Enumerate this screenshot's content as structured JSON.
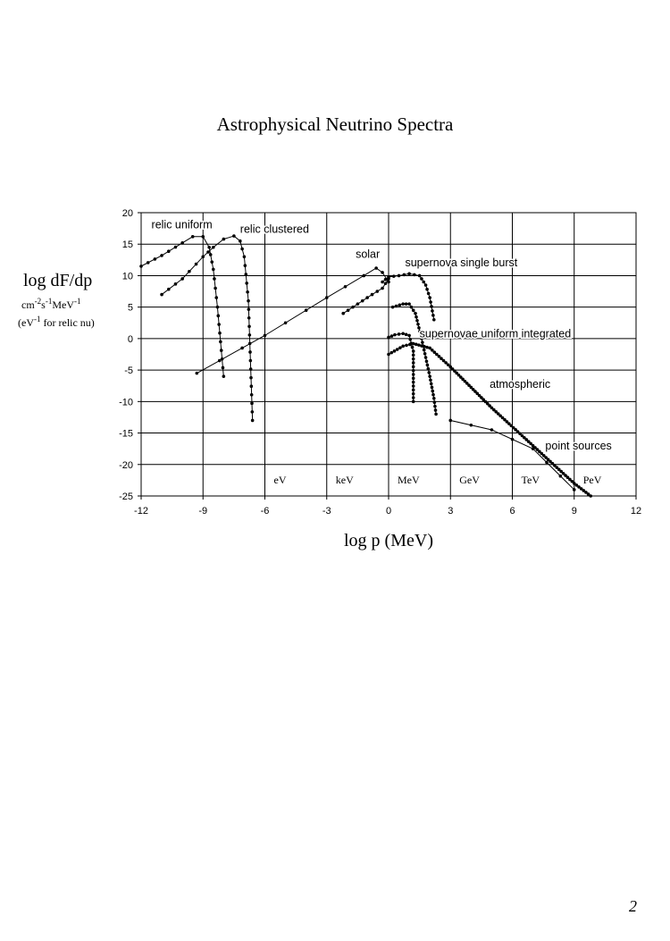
{
  "page": {
    "title": "Astrophysical Neutrino Spectra",
    "page_number": "2"
  },
  "chart_data": {
    "type": "line",
    "title": "Astrophysical Neutrino Spectra",
    "xlabel": "log p (MeV)",
    "ylabel": "log dF/dp",
    "ylabel_units": [
      "cm",
      "-2",
      "s",
      "-1",
      "MeV",
      "-1"
    ],
    "ylabel_note": [
      "(eV",
      "-1",
      " for relic nu)"
    ],
    "xlim": [
      -12,
      12
    ],
    "ylim": [
      -25,
      20
    ],
    "xticks": [
      -12,
      -9,
      -6,
      -3,
      0,
      3,
      6,
      9,
      12
    ],
    "yticks": [
      -25,
      -20,
      -15,
      -10,
      -5,
      0,
      5,
      10,
      15,
      20
    ],
    "grid": true,
    "energy_scale_labels": [
      {
        "text": "eV",
        "x": -6
      },
      {
        "text": "keV",
        "x": -3
      },
      {
        "text": "MeV",
        "x": 0
      },
      {
        "text": "GeV",
        "x": 3
      },
      {
        "text": "TeV",
        "x": 6
      },
      {
        "text": "PeV",
        "x": 9
      }
    ],
    "series": [
      {
        "name": "relic uniform",
        "label_at": [
          -11.5,
          17.5
        ],
        "dot_spacing": 0.45,
        "points": [
          [
            -12,
            11.5
          ],
          [
            -11,
            13.2
          ],
          [
            -10,
            15.2
          ],
          [
            -9.5,
            16.2
          ],
          [
            -9,
            16.2
          ],
          [
            -8.7,
            14.5
          ],
          [
            -8.5,
            11
          ],
          [
            -8.3,
            5
          ],
          [
            -8,
            -6
          ]
        ]
      },
      {
        "name": "relic clustered",
        "label_at": [
          -7.2,
          16.8
        ],
        "dot_spacing": 0.45,
        "points": [
          [
            -11,
            7
          ],
          [
            -10,
            9.5
          ],
          [
            -9,
            13
          ],
          [
            -8.5,
            14.5
          ],
          [
            -8,
            15.8
          ],
          [
            -7.5,
            16.3
          ],
          [
            -7.2,
            15.5
          ],
          [
            -7,
            13
          ],
          [
            -6.8,
            6
          ],
          [
            -6.6,
            -13
          ]
        ]
      },
      {
        "name": "solar",
        "label_at": [
          -1.6,
          12.8
        ],
        "dot_spacing": 1.15,
        "points": [
          [
            -9.3,
            -5.5
          ],
          [
            -6,
            0.5
          ],
          [
            -3,
            6.5
          ],
          [
            -1.2,
            10
          ],
          [
            -0.6,
            11.2
          ],
          [
            -0.3,
            10.5
          ],
          [
            0,
            9
          ]
        ]
      },
      {
        "name": "solar",
        "dot_spacing": 0.3,
        "points": [
          [
            -2.2,
            4
          ],
          [
            -1.5,
            5.5
          ],
          [
            -0.8,
            7
          ],
          [
            -0.3,
            8
          ],
          [
            0,
            9.5
          ]
        ]
      },
      {
        "name": "supernova single burst",
        "label_at": [
          0.8,
          11.5
        ],
        "dot_spacing": 0.22,
        "points": [
          [
            -0.3,
            9
          ],
          [
            0,
            9.8
          ],
          [
            0.5,
            10
          ],
          [
            1,
            10.3
          ],
          [
            1.5,
            10
          ],
          [
            1.8,
            8.5
          ],
          [
            2,
            6.5
          ],
          [
            2.2,
            3
          ]
        ]
      },
      {
        "name": "supernovae uniform integrated",
        "label_at": [
          1.5,
          0.2
        ],
        "dot_spacing": 0.2,
        "points": [
          [
            0,
            0.2
          ],
          [
            0.3,
            0.6
          ],
          [
            0.7,
            0.8
          ],
          [
            1,
            0.5
          ],
          [
            1.2,
            -2
          ],
          [
            1.2,
            -10
          ]
        ]
      },
      {
        "name": "supernovae uniform integrated",
        "dot_spacing": 0.2,
        "points": [
          [
            0.2,
            5
          ],
          [
            0.7,
            5.5
          ],
          [
            1,
            5.5
          ],
          [
            1.3,
            4
          ],
          [
            1.6,
            0
          ],
          [
            1.8,
            -3
          ],
          [
            2,
            -6
          ],
          [
            2.2,
            -9.5
          ],
          [
            2.3,
            -12
          ]
        ]
      },
      {
        "name": "atmospheric",
        "label_at": [
          4.9,
          -7.8
        ],
        "dot_spacing": 0.15,
        "points": [
          [
            0,
            -2.5
          ],
          [
            0.7,
            -1.2
          ],
          [
            1.2,
            -0.8
          ],
          [
            2,
            -1.5
          ],
          [
            3,
            -4.5
          ],
          [
            5,
            -11
          ],
          [
            7,
            -17
          ],
          [
            9,
            -23
          ],
          [
            9.8,
            -25
          ]
        ]
      },
      {
        "name": "point sources",
        "label_at": [
          7.6,
          -17.6
        ],
        "dot_spacing": 1,
        "points": [
          [
            3,
            -13
          ],
          [
            5,
            -14.5
          ],
          [
            7,
            -17.5
          ],
          [
            9,
            -24
          ]
        ]
      }
    ]
  }
}
